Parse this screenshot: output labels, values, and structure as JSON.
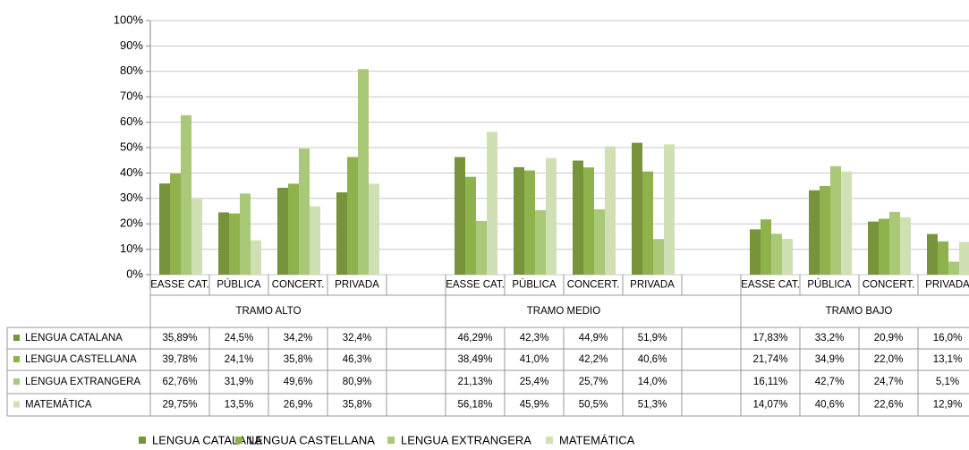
{
  "chart_data": {
    "type": "bar",
    "categories": [
      "EASSE CAT.",
      "PÚBLICA",
      "CONCERT.",
      "PRIVADA",
      null,
      "EASSE CAT.",
      "PÚBLICA",
      "CONCERT.",
      "PRIVADA",
      null,
      "EASSE CAT.",
      "PÚBLICA",
      "CONCERT.",
      "PRIVADA"
    ],
    "groups": [
      "TRAMO ALTO",
      "TRAMO MEDIO",
      "TRAMO BAJO"
    ],
    "ylim": [
      0,
      100
    ],
    "yticks": [
      {
        "value": 0,
        "label": "0%"
      },
      {
        "value": 10,
        "label": "10%"
      },
      {
        "value": 20,
        "label": "20%"
      },
      {
        "value": 30,
        "label": "30%"
      },
      {
        "value": 40,
        "label": "40%"
      },
      {
        "value": 50,
        "label": "50%"
      },
      {
        "value": 60,
        "label": "60%"
      },
      {
        "value": 70,
        "label": "70%"
      },
      {
        "value": 80,
        "label": "80%"
      },
      {
        "value": 90,
        "label": "90%"
      },
      {
        "value": 100,
        "label": "100%"
      }
    ],
    "grid": true,
    "series": [
      {
        "name": "LENGUA CATALANA",
        "color": "#77933c",
        "values": [
          35.89,
          24.5,
          34.2,
          32.4,
          null,
          46.29,
          42.3,
          44.9,
          51.9,
          null,
          17.83,
          33.2,
          20.9,
          16.0
        ],
        "value_labels": [
          "35,89%",
          "24,5%",
          "34,2%",
          "32,4%",
          null,
          "46,29%",
          "42,3%",
          "44,9%",
          "51,9%",
          null,
          "17,83%",
          "33,2%",
          "20,9%",
          "16,0%"
        ]
      },
      {
        "name": "LENGUA CASTELLANA",
        "color": "#8fb24c",
        "values": [
          39.78,
          24.1,
          35.8,
          46.3,
          null,
          38.49,
          41.0,
          42.2,
          40.6,
          null,
          21.74,
          34.9,
          22.0,
          13.1
        ],
        "value_labels": [
          "39,78%",
          "24,1%",
          "35,8%",
          "46,3%",
          null,
          "38,49%",
          "41,0%",
          "42,2%",
          "40,6%",
          null,
          "21,74%",
          "34,9%",
          "22,0%",
          "13,1%"
        ]
      },
      {
        "name": "LENGUA EXTRANGERA",
        "color": "#a9c878",
        "values": [
          62.76,
          31.9,
          49.6,
          80.9,
          null,
          21.13,
          25.4,
          25.7,
          14.0,
          null,
          16.11,
          42.7,
          24.7,
          5.1
        ],
        "value_labels": [
          "62,76%",
          "31,9%",
          "49,6%",
          "80,9%",
          null,
          "21,13%",
          "25,4%",
          "25,7%",
          "14,0%",
          null,
          "16,11%",
          "42,7%",
          "24,7%",
          "5,1%"
        ]
      },
      {
        "name": "MATEMÁTICA",
        "color": "#cfe0b4",
        "values": [
          29.75,
          13.5,
          26.9,
          35.8,
          null,
          56.18,
          45.9,
          50.5,
          51.3,
          null,
          14.07,
          40.6,
          22.6,
          12.9
        ],
        "value_labels": [
          "29,75%",
          "13,5%",
          "26,9%",
          "35,8%",
          null,
          "56,18%",
          "45,9%",
          "50,5%",
          "51,3%",
          null,
          "14,07%",
          "40,6%",
          "22,6%",
          "12,9%"
        ]
      }
    ]
  }
}
